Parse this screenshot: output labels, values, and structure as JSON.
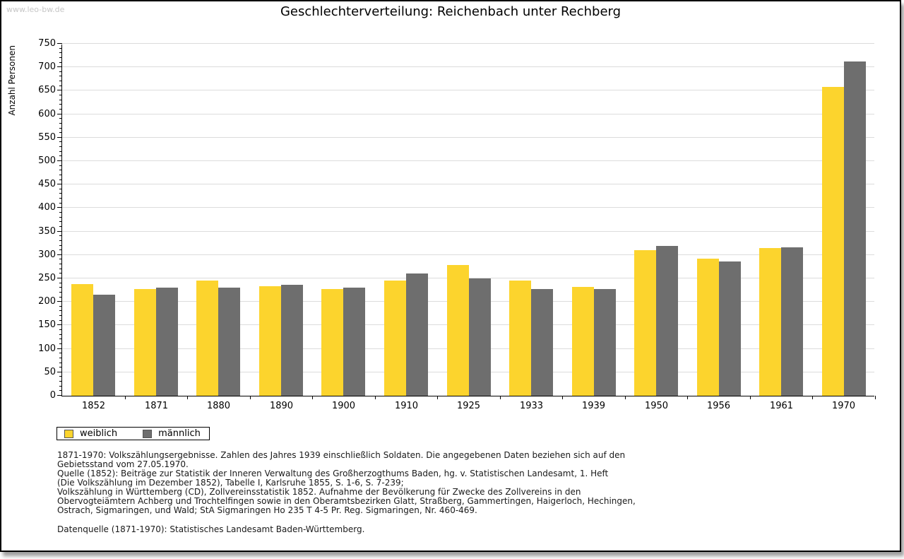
{
  "page": {
    "watermark": "www.leo-bw.de"
  },
  "chart_data": {
    "type": "bar",
    "title": "Geschlechterverteilung: Reichenbach unter Rechberg",
    "xlabel": "",
    "ylabel": "Anzahl Personen",
    "ylim": [
      0,
      750
    ],
    "yticks": [
      0,
      50,
      100,
      150,
      200,
      250,
      300,
      350,
      400,
      450,
      500,
      550,
      600,
      650,
      700,
      750
    ],
    "minor_tick_step": 10,
    "grid": true,
    "legend_position": "bottom-left",
    "categories": [
      "1852",
      "1871",
      "1880",
      "1890",
      "1900",
      "1910",
      "1925",
      "1933",
      "1939",
      "1950",
      "1956",
      "1961",
      "1970"
    ],
    "series": [
      {
        "name": "weiblich",
        "color": "#FCD42D",
        "values": [
          238,
          228,
          246,
          234,
          228,
          245,
          279,
          245,
          232,
          310,
          292,
          315,
          658
        ]
      },
      {
        "name": "männlich",
        "color": "#6E6E6E",
        "values": [
          215,
          230,
          231,
          236,
          231,
          261,
          250,
          227,
          227,
          320,
          286,
          317,
          713
        ]
      }
    ]
  },
  "notes": {
    "lines": [
      "1871-1970: Volkszählungsergebnisse. Zahlen des Jahres 1939 einschließlich Soldaten. Die angegebenen Daten beziehen sich auf den",
      "Gebietsstand vom 27.05.1970.",
      "Quelle (1852): Beiträge zur Statistik der Inneren Verwaltung des Großherzogthums Baden, hg. v. Statistischen Landesamt, 1. Heft",
      "(Die Volkszählung im Dezember 1852), Tabelle I, Karlsruhe 1855, S. 1-6, S. 7-239;",
      "Volkszählung in Württemberg (CD), Zollvereinsstatistik 1852. Aufnahme der Bevölkerung für Zwecke des Zollvereins in den",
      "Obervogteiämtern Achberg und Trochtelfingen sowie in den Oberamtsbezirken Glatt, Straßberg, Gammertingen, Haigerloch, Hechingen,",
      "Ostrach, Sigmaringen, und Wald; StA Sigmaringen Ho 235 T 4-5 Pr. Reg. Sigmaringen, Nr. 460-469."
    ],
    "datasource": "Datenquelle (1871-1970): Statistisches Landesamt Baden-Württemberg."
  }
}
